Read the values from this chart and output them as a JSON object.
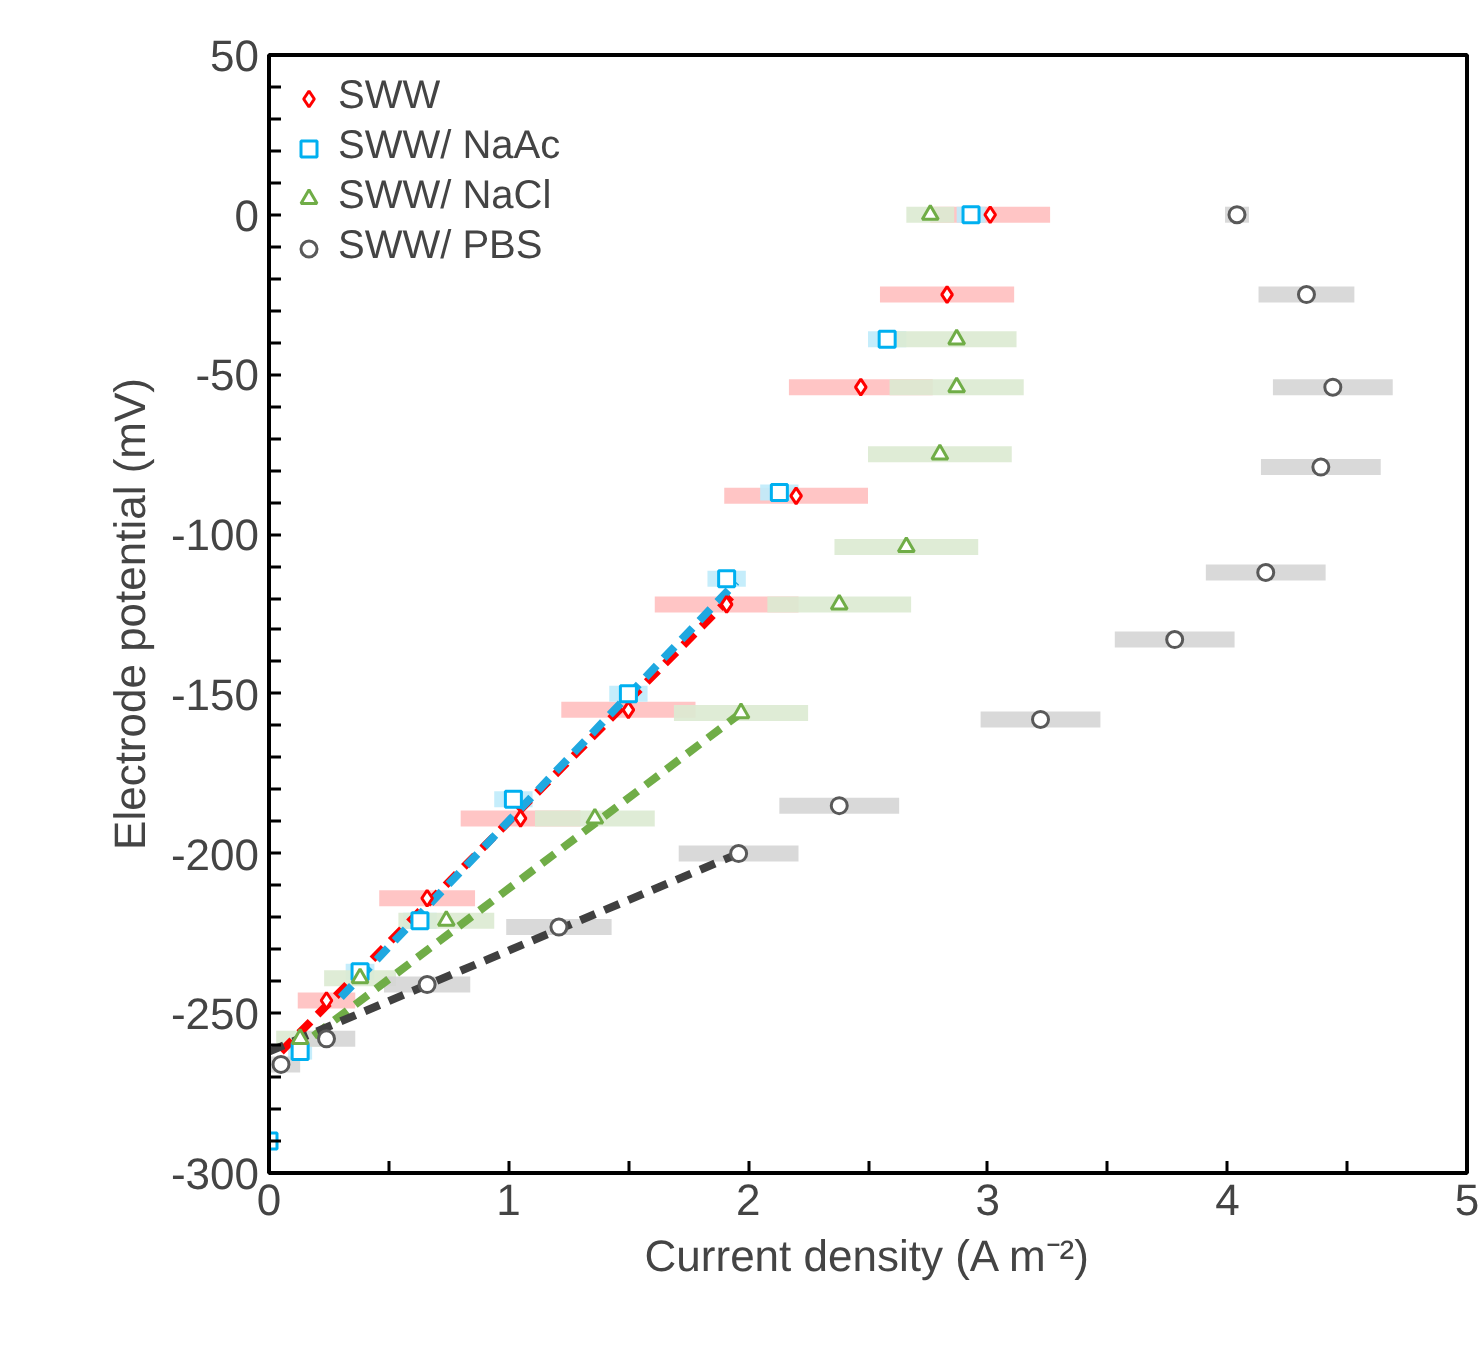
{
  "chart_data": {
    "type": "scatter",
    "xlabel": "Current density (A m⁻²)",
    "ylabel": "Electrode potential (mV)",
    "xlim": [
      0,
      5
    ],
    "ylim": [
      -300,
      50
    ],
    "xticks": [
      0,
      {
        "value": 0.5,
        "label": null
      },
      1,
      {
        "value": 1.5,
        "label": null
      },
      2,
      {
        "value": 2.5,
        "label": null
      },
      3,
      {
        "value": 3.5,
        "label": null
      },
      4,
      {
        "value": 4.5,
        "label": null
      },
      5
    ],
    "yticks": [
      -300,
      {
        "value": -290,
        "label": null
      },
      {
        "value": -280,
        "label": null
      },
      {
        "value": -270,
        "label": null
      },
      {
        "value": -260,
        "label": null
      },
      -250,
      {
        "value": -240,
        "label": null
      },
      {
        "value": -230,
        "label": null
      },
      {
        "value": -220,
        "label": null
      },
      {
        "value": -210,
        "label": null
      },
      -200,
      {
        "value": -190,
        "label": null
      },
      {
        "value": -180,
        "label": null
      },
      {
        "value": -170,
        "label": null
      },
      {
        "value": -160,
        "label": null
      },
      -150,
      {
        "value": -140,
        "label": null
      },
      {
        "value": -130,
        "label": null
      },
      {
        "value": -120,
        "label": null
      },
      {
        "value": -110,
        "label": null
      },
      -100,
      {
        "value": -90,
        "label": null
      },
      {
        "value": -80,
        "label": null
      },
      {
        "value": -70,
        "label": null
      },
      {
        "value": -60,
        "label": null
      },
      -50,
      {
        "value": -40,
        "label": null
      },
      {
        "value": -30,
        "label": null
      },
      {
        "value": -20,
        "label": null
      },
      {
        "value": -10,
        "label": null
      },
      0,
      {
        "value": 10,
        "label": null
      },
      {
        "value": 20,
        "label": null
      },
      {
        "value": 30,
        "label": null
      },
      {
        "value": 40,
        "label": null
      },
      50
    ],
    "legend": "top left",
    "grid": false,
    "series": [
      {
        "name": "SWW",
        "marker": "diamond",
        "color": "#ff0000",
        "x": [
          0.24,
          0.66,
          1.05,
          1.5,
          1.91,
          2.2,
          2.47,
          2.83,
          3.01
        ],
        "values": [
          -246,
          -214,
          -189,
          -155,
          -122,
          -88,
          -54,
          -25,
          0
        ],
        "xerrors": [
          0.12,
          0.2,
          0.25,
          0.28,
          0.3,
          0.3,
          0.3,
          0.28,
          0.25
        ]
      },
      {
        "name": "SWW/ NaAc",
        "marker": "square",
        "color": "#00b0f0",
        "x": [
          0,
          0.13,
          0.38,
          0.63,
          1.02,
          1.5,
          1.91,
          2.13,
          2.58,
          2.93
        ],
        "values": [
          -290,
          -262,
          -237,
          -221,
          -183,
          -150,
          -114,
          -87,
          -39,
          0
        ],
        "xerrors": [
          0.03,
          0.05,
          0.06,
          0.07,
          0.08,
          0.08,
          0.08,
          0.08,
          0.08,
          0.06
        ]
      },
      {
        "name": "SWW/ NaCl",
        "marker": "triangle",
        "color": "#70ad47",
        "x": [
          0.13,
          0.38,
          0.74,
          1.36,
          1.97,
          2.38,
          2.66,
          2.8,
          2.87,
          2.87,
          2.76
        ],
        "values": [
          -258,
          -239,
          -221,
          -189,
          -156,
          -122,
          -104,
          -75,
          -54,
          -39,
          0
        ],
        "xerrors": [
          0.1,
          0.15,
          0.2,
          0.25,
          0.28,
          0.3,
          0.3,
          0.3,
          0.28,
          0.25,
          0.1
        ]
      },
      {
        "name": "SWW/ PBS",
        "marker": "circle",
        "color": "#595959",
        "x": [
          0.05,
          0.24,
          0.66,
          1.21,
          1.96,
          2.38,
          3.22,
          3.78,
          4.16,
          4.39,
          4.44,
          4.33,
          4.04
        ],
        "values": [
          -266,
          -258,
          -241,
          -223,
          -200,
          -185,
          -158,
          -133,
          -112,
          -79,
          -54,
          -25,
          0
        ],
        "xerrors": [
          0.08,
          0.12,
          0.18,
          0.22,
          0.25,
          0.25,
          0.25,
          0.25,
          0.25,
          0.25,
          0.25,
          0.2,
          0.05
        ]
      },
      {
        "type": "line",
        "line_style": "dashed",
        "color": "#ff0000",
        "x": [
          0.05,
          1.95
        ],
        "values": [
          -262,
          -118
        ]
      },
      {
        "type": "line",
        "line_style": "dashed",
        "color": "#1fa8e0",
        "x": [
          0.3,
          1.95
        ],
        "values": [
          -245,
          -115
        ]
      },
      {
        "type": "line",
        "line_style": "dashed",
        "color": "#70ad47",
        "x": [
          0.1,
          1.97
        ],
        "values": [
          -262,
          -156
        ]
      },
      {
        "type": "line",
        "line_style": "dashed",
        "color": "#404040",
        "x": [
          0,
          1.96
        ],
        "values": [
          -262,
          -200
        ]
      }
    ]
  }
}
